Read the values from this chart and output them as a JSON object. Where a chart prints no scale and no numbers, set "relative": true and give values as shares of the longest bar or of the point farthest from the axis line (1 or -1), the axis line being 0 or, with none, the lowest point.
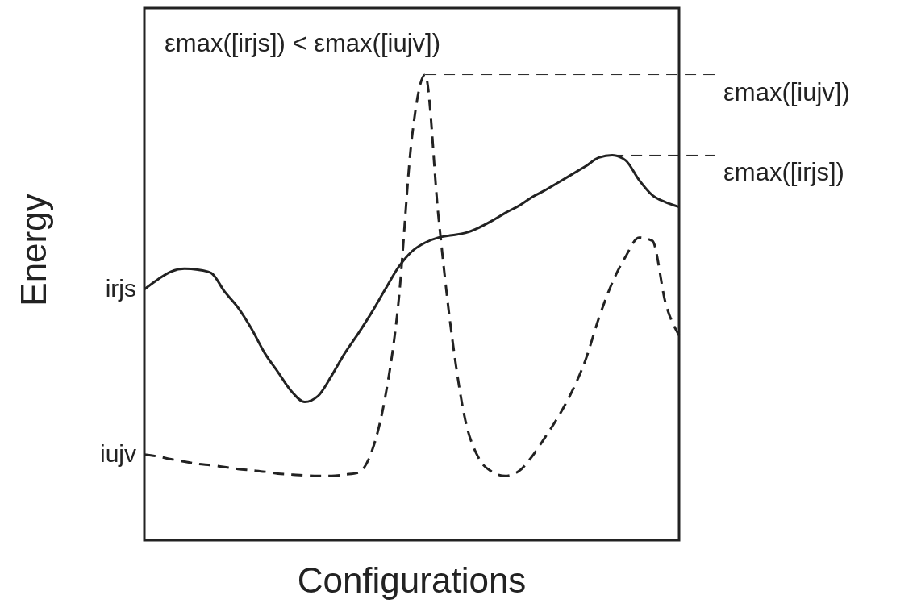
{
  "chart_data": {
    "type": "line",
    "relative": true,
    "tick_labels": false,
    "xlabel": "Configurations",
    "ylabel": "Energy",
    "categories": [
      null,
      null,
      null,
      null,
      null,
      null,
      null,
      null,
      null,
      null,
      null,
      null,
      null,
      null,
      null,
      null,
      null,
      null,
      null,
      null,
      null,
      null,
      null,
      null,
      null,
      null,
      null,
      null,
      null,
      null,
      null,
      null,
      null,
      null,
      null,
      null,
      null,
      null,
      null,
      null,
      null
    ],
    "series": [
      {
        "name": "irjs",
        "color": "#222222",
        "line_style": "solid",
        "values": [
          0.539,
          0.56,
          0.577,
          0.583,
          0.581,
          0.574,
          0.534,
          0.5,
          0.455,
          0.402,
          0.361,
          0.32,
          0.297,
          0.31,
          0.353,
          0.402,
          0.444,
          0.489,
          0.538,
          0.586,
          0.62,
          0.639,
          0.65,
          0.655,
          0.66,
          0.671,
          0.686,
          0.703,
          0.718,
          0.737,
          0.752,
          0.769,
          0.786,
          0.803,
          0.822,
          0.827,
          0.816,
          0.774,
          0.741,
          0.726,
          0.716
        ]
      },
      {
        "name": "iujv",
        "color": "#222222",
        "line_style": "dashed",
        "values": [
          0.184,
          0.18,
          0.174,
          0.169,
          0.164,
          0.161,
          0.157,
          0.153,
          0.15,
          0.147,
          0.143,
          0.141,
          0.139,
          0.138,
          0.138,
          0.141,
          0.145,
          0.19,
          0.305,
          0.508,
          0.861,
          1,
          0.695,
          0.44,
          0.259,
          0.177,
          0.147,
          0.138,
          0.148,
          0.18,
          0.222,
          0.267,
          0.32,
          0.387,
          0.477,
          0.553,
          0.609,
          0.65,
          0.643,
          0.508,
          0.44
        ]
      }
    ],
    "ref_lines": [
      {
        "axis": "y",
        "value": 1,
        "label": "εmax([iujv])",
        "line_style": "dashed",
        "color": "#222222"
      },
      {
        "axis": "y",
        "value": 0.827,
        "label": "εmax([irjs])",
        "line_style": "dashed",
        "color": "#222222"
      }
    ],
    "annotations": [
      "εmax([irjs]) < εmax([iujv])"
    ]
  }
}
